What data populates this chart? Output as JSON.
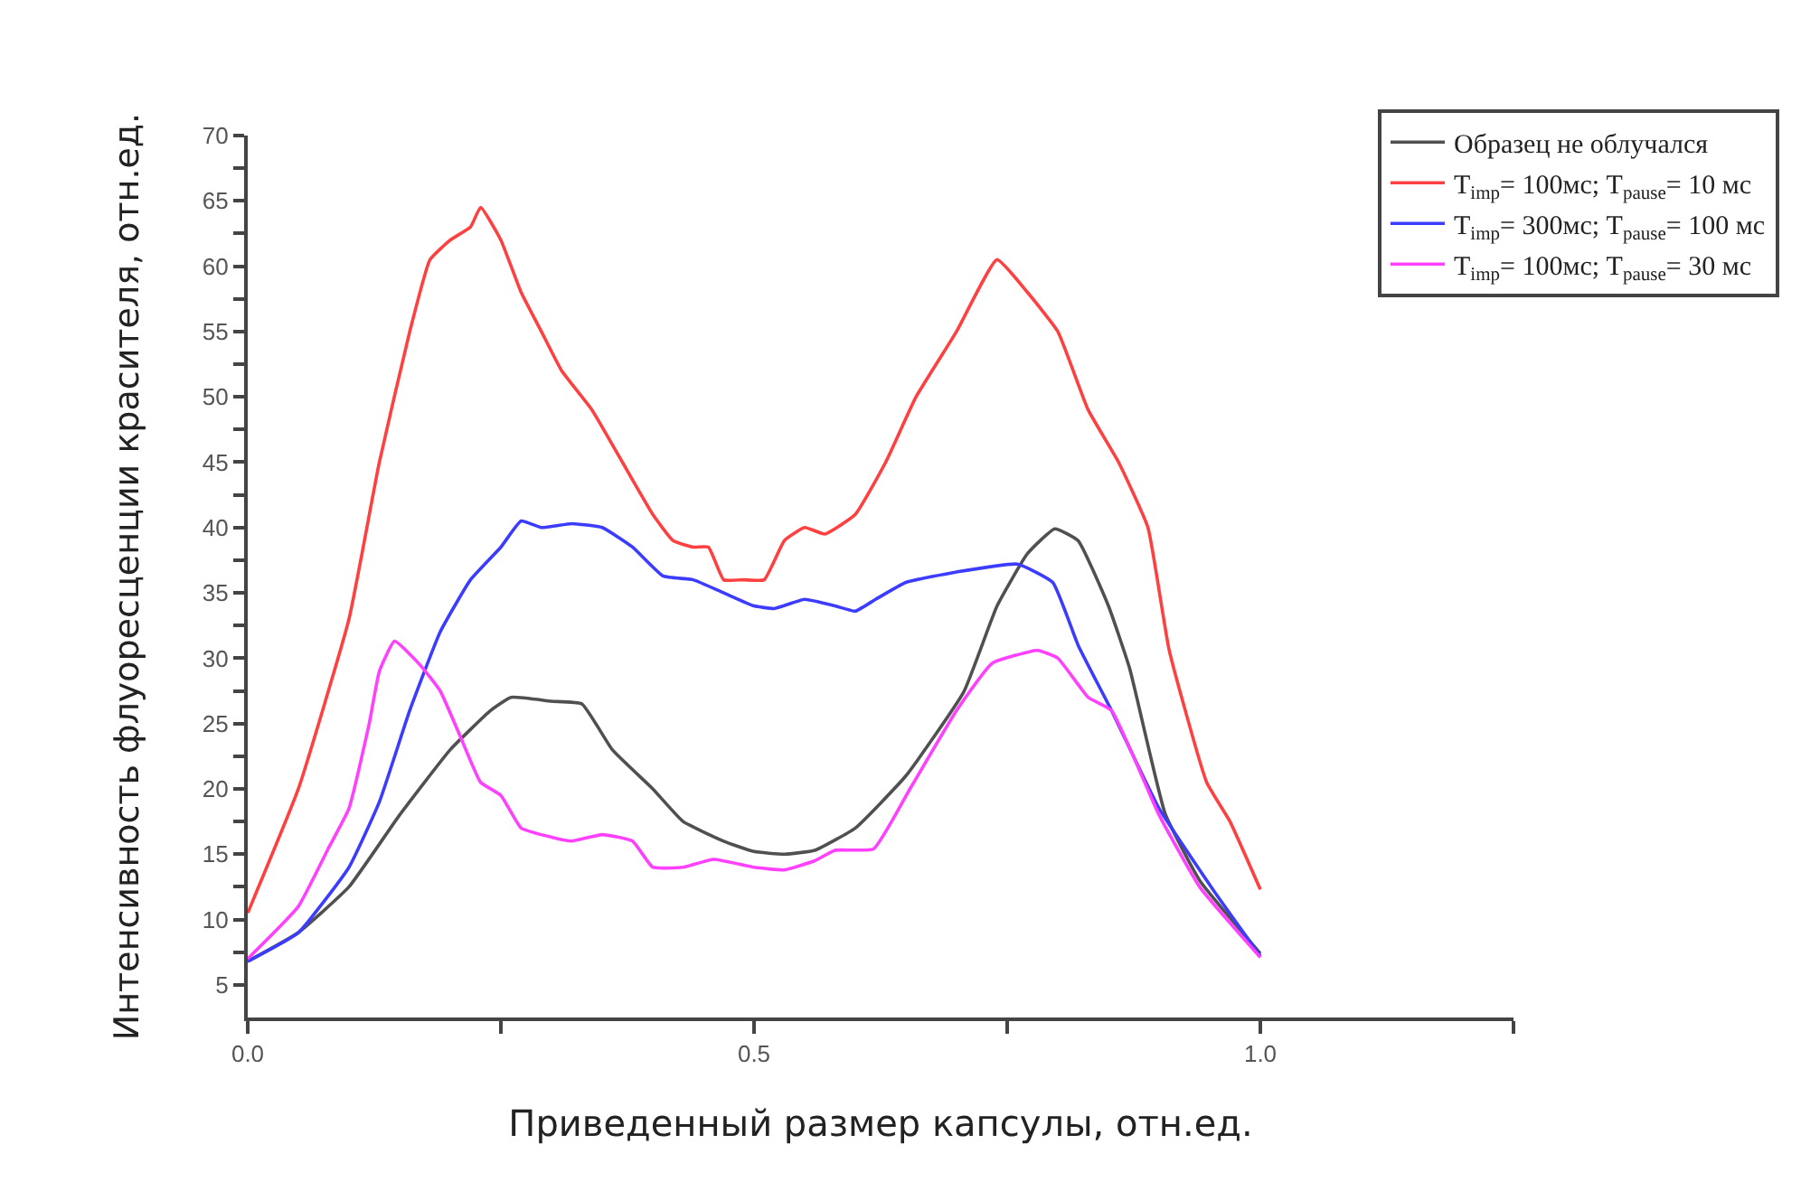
{
  "chart_data": {
    "type": "line",
    "xlabel": "Приведенный размер капсулы, отн.ед.",
    "ylabel": "Интенсивность флуоресценции красителя, отн.ед.",
    "xlim": [
      0,
      1.25
    ],
    "xticks": [
      {
        "value": 0,
        "label": "0.0"
      },
      {
        "value": 0.25,
        "label": null
      },
      0.5,
      {
        "value": 0.75,
        "label": null
      },
      {
        "value": 1,
        "label": "1.0"
      },
      {
        "value": 1.25,
        "label": null
      }
    ],
    "ylim": [
      2.5,
      70
    ],
    "yticks": [
      5,
      {
        "value": 7.5,
        "label": null
      },
      10,
      {
        "value": 12.5,
        "label": null
      },
      15,
      {
        "value": 17.5,
        "label": null
      },
      20,
      {
        "value": 22.5,
        "label": null
      },
      25,
      {
        "value": 27.5,
        "label": null
      },
      30,
      {
        "value": 32.5,
        "label": null
      },
      35,
      {
        "value": 37.5,
        "label": null
      },
      40,
      {
        "value": 42.5,
        "label": null
      },
      45,
      {
        "value": 47.5,
        "label": null
      },
      50,
      {
        "value": 52.5,
        "label": null
      },
      55,
      {
        "value": 57.5,
        "label": null
      },
      60,
      {
        "value": 62.5,
        "label": null
      },
      65,
      {
        "value": 67.5,
        "label": null
      },
      70
    ],
    "legend": "top right",
    "marker": "none",
    "line_style": "solid",
    "series": [
      {
        "name": "Образец не облучался",
        "color": "#505050",
        "x": [
          0,
          0.05,
          0.1,
          0.15,
          0.2,
          0.24,
          0.26,
          0.3,
          0.33,
          0.36,
          0.4,
          0.43,
          0.47,
          0.5,
          0.53,
          0.56,
          0.6,
          0.65,
          0.707,
          0.74,
          0.77,
          0.797,
          0.82,
          0.85,
          0.871,
          0.906,
          0.94,
          1.0
        ],
        "values": [
          6.8,
          9,
          12.5,
          18,
          23,
          26,
          27,
          26.7,
          26.5,
          23,
          20,
          17.5,
          16,
          15.2,
          15,
          15.3,
          17,
          21,
          27.4,
          34,
          38,
          39.9,
          39,
          34,
          29.2,
          18.1,
          13,
          7.4
        ]
      },
      {
        "name": "T$_{imp}$= 100мс; T$_{pause}$= 10 мс",
        "color": "#ff4040",
        "x": [
          0,
          0.05,
          0.1,
          0.13,
          0.16,
          0.18,
          0.2,
          0.22,
          0.23,
          0.25,
          0.27,
          0.29,
          0.31,
          0.34,
          0.37,
          0.4,
          0.42,
          0.44,
          0.455,
          0.47,
          0.49,
          0.51,
          0.53,
          0.55,
          0.57,
          0.6,
          0.63,
          0.66,
          0.7,
          0.74,
          0.77,
          0.8,
          0.83,
          0.86,
          0.889,
          0.91,
          0.947,
          0.97,
          1.0
        ],
        "values": [
          10.5,
          20,
          33,
          45,
          55,
          60.5,
          62,
          63,
          64.5,
          62,
          58,
          55,
          52,
          49,
          45,
          41,
          39,
          38.5,
          38.5,
          36,
          36,
          36,
          39,
          40,
          39.5,
          41,
          45,
          50,
          55,
          60.5,
          58,
          55,
          49,
          45,
          40,
          30.6,
          20.5,
          17.5,
          12.3
        ]
      },
      {
        "name": "T$_{imp}$= 300мс; T$_{pause}$= 100 мс",
        "color": "#3c3cff",
        "x": [
          0,
          0.05,
          0.1,
          0.13,
          0.16,
          0.19,
          0.22,
          0.25,
          0.27,
          0.29,
          0.32,
          0.35,
          0.38,
          0.41,
          0.44,
          0.47,
          0.5,
          0.52,
          0.55,
          0.58,
          0.6,
          0.62,
          0.65,
          0.7,
          0.76,
          0.795,
          0.82,
          0.853,
          0.9,
          0.954,
          1.0
        ],
        "values": [
          6.8,
          9,
          14,
          19,
          26,
          32,
          36,
          38.5,
          40.5,
          40,
          40.3,
          40,
          38.5,
          36.3,
          36,
          35,
          34,
          33.8,
          34.5,
          34,
          33.6,
          34.5,
          35.8,
          36.6,
          37.2,
          35.8,
          31,
          26,
          18.5,
          12.2,
          7.2
        ]
      },
      {
        "name": "T$_{imp}$= 100мс; T$_{pause}$= 30 мс",
        "color": "#ff40ff",
        "x": [
          0,
          0.05,
          0.08,
          0.1,
          0.12,
          0.13,
          0.145,
          0.17,
          0.19,
          0.21,
          0.23,
          0.25,
          0.27,
          0.3,
          0.32,
          0.35,
          0.38,
          0.4,
          0.43,
          0.46,
          0.5,
          0.53,
          0.56,
          0.58,
          0.618,
          0.654,
          0.7,
          0.735,
          0.78,
          0.8,
          0.83,
          0.853,
          0.9,
          0.94,
          1.0
        ],
        "values": [
          7,
          11,
          15.5,
          18.5,
          25,
          29,
          31.3,
          29.5,
          27.5,
          24,
          20.5,
          19.5,
          17,
          16.3,
          16,
          16.5,
          16,
          14,
          14,
          14.6,
          14,
          13.8,
          14.5,
          15.3,
          15.4,
          20,
          26,
          29.6,
          30.6,
          30,
          27,
          26,
          18,
          12.5,
          7.1
        ]
      }
    ]
  }
}
